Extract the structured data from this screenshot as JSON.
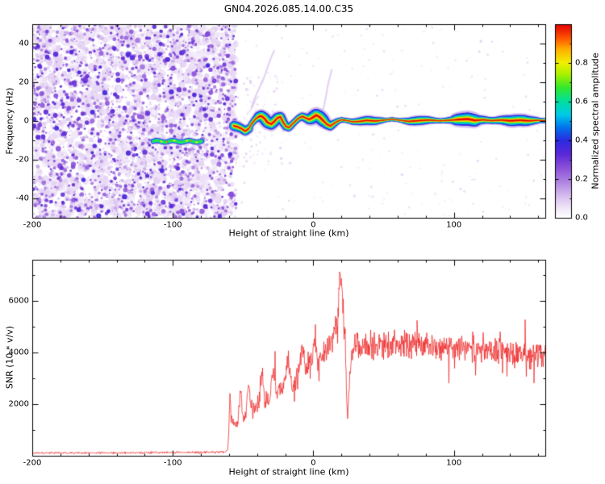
{
  "figure": {
    "title": "GN04.2026.085.14.00.C35"
  },
  "chart_data": [
    {
      "type": "heatmap",
      "name": "doppler-spectrogram",
      "xlabel": "Height of straight line (km)",
      "ylabel": "Frequency (Hz)",
      "xlim": [
        -200,
        165
      ],
      "ylim": [
        -50,
        50
      ],
      "xticks": [
        {
          "v": -200,
          "label": "-200"
        },
        {
          "v": -100,
          "label": "-100"
        },
        {
          "v": 0,
          "label": "0"
        },
        {
          "v": 100,
          "label": "100"
        }
      ],
      "yticks": [
        {
          "v": -40,
          "label": "-40"
        },
        {
          "v": -20,
          "label": "-20"
        },
        {
          "v": 0,
          "label": "0"
        },
        {
          "v": 20,
          "label": "20"
        },
        {
          "v": 40,
          "label": "40"
        }
      ],
      "minor_x_step": 20,
      "minor_y_step": 10,
      "colorbar": {
        "label": "Normalized spectral amplitude",
        "range": [
          0,
          1
        ],
        "ticks": [
          {
            "v": 0,
            "label": "0.0"
          },
          {
            "v": 0.2,
            "label": "0.2"
          },
          {
            "v": 0.4,
            "label": "0.4"
          },
          {
            "v": 0.6,
            "label": "0.6"
          },
          {
            "v": 0.8,
            "label": "0.8"
          }
        ],
        "minor_step": 0.1,
        "colormap": [
          [
            0.0,
            "#ffffff"
          ],
          [
            0.04,
            "#f3ecfa"
          ],
          [
            0.1,
            "#ddc6f0"
          ],
          [
            0.18,
            "#b288e2"
          ],
          [
            0.26,
            "#8a4fd8"
          ],
          [
            0.33,
            "#5a28d8"
          ],
          [
            0.4,
            "#2b2be0"
          ],
          [
            0.47,
            "#0077ee"
          ],
          [
            0.53,
            "#00c8e8"
          ],
          [
            0.6,
            "#00e0a0"
          ],
          [
            0.67,
            "#30e830"
          ],
          [
            0.74,
            "#a8f000"
          ],
          [
            0.8,
            "#f0f000"
          ],
          [
            0.87,
            "#ffb000"
          ],
          [
            0.93,
            "#ff5000"
          ],
          [
            1.0,
            "#e00000"
          ]
        ]
      },
      "noise_region": {
        "x_range": [
          -200,
          -55
        ],
        "amplitude_range": [
          0.02,
          0.36
        ]
      },
      "sparse_region": {
        "x_range": [
          -55,
          165
        ],
        "amplitude_range": [
          0.02,
          0.1
        ]
      },
      "main_trace": {
        "description": "high-amplitude Doppler trace near 0 Hz",
        "peak_amplitude": 1.0,
        "points": [
          [
            -56.5,
            -2.5
          ],
          [
            -54,
            -3
          ],
          [
            -51,
            -4
          ],
          [
            -48.5,
            -5.2
          ],
          [
            -46,
            -4
          ],
          [
            -44,
            -1.5
          ],
          [
            -41.5,
            0.8
          ],
          [
            -39,
            2.2
          ],
          [
            -37,
            2.6
          ],
          [
            -35,
            1.4
          ],
          [
            -32.5,
            -0.8
          ],
          [
            -30,
            -1.6
          ],
          [
            -28,
            -0.4
          ],
          [
            -25.5,
            1.6
          ],
          [
            -23.5,
            2.1
          ],
          [
            -21.5,
            -0.6
          ],
          [
            -19.5,
            -2.8
          ],
          [
            -17.5,
            -3.4
          ],
          [
            -15.5,
            -2
          ],
          [
            -13,
            -0.2
          ],
          [
            -10.5,
            1.4
          ],
          [
            -8,
            2.4
          ],
          [
            -5.5,
            1.6
          ],
          [
            -3,
            0.8
          ],
          [
            -0.5,
            1.8
          ],
          [
            2,
            3
          ],
          [
            4.5,
            2
          ],
          [
            7,
            0.2
          ],
          [
            9.5,
            -1.6
          ],
          [
            12,
            -2.6
          ],
          [
            14.5,
            -1.4
          ],
          [
            17,
            -0.2
          ],
          [
            20,
            0.6
          ],
          [
            24,
            0.2
          ],
          [
            28,
            -0.4
          ],
          [
            33,
            -0.2
          ],
          [
            38,
            0.3
          ],
          [
            44,
            0
          ],
          [
            50,
            0.4
          ],
          [
            56,
            0.9
          ],
          [
            62,
            0.3
          ],
          [
            68,
            -0.2
          ],
          [
            75,
            0.2
          ],
          [
            82,
            0.5
          ],
          [
            90,
            0.1
          ],
          [
            97,
            0.4
          ],
          [
            104,
            0.8
          ],
          [
            110,
            1
          ],
          [
            115,
            0.3
          ],
          [
            121,
            0.6
          ],
          [
            127,
            0.2
          ],
          [
            134,
            0.5
          ],
          [
            140,
            0.1
          ],
          [
            147,
            0.4
          ],
          [
            153,
            0.1
          ],
          [
            159,
            0.3
          ],
          [
            165,
            0.2
          ]
        ]
      },
      "secondary_trace": {
        "freq": -10.5,
        "x_range": [
          -114,
          -79
        ],
        "peak_amplitude": 0.65
      },
      "streaks": [
        {
          "from": [
            -44,
            7
          ],
          "to": [
            -28,
            36
          ]
        },
        {
          "from": [
            -47,
            3
          ],
          "to": [
            -39,
            13
          ]
        },
        {
          "from": [
            6,
            3
          ],
          "to": [
            13,
            27
          ]
        }
      ]
    },
    {
      "type": "line",
      "name": "snr-profile",
      "xlabel": "Height of straight line (km)",
      "ylabel": "SNR (10 * v/v)",
      "line_color": "#ee2222",
      "xlim": [
        -200,
        165
      ],
      "ylim": [
        0,
        7600
      ],
      "xticks": [
        {
          "v": -200,
          "label": "-200"
        },
        {
          "v": -100,
          "label": "-100"
        },
        {
          "v": 0,
          "label": "0"
        },
        {
          "v": 100,
          "label": "100"
        }
      ],
      "yticks": [
        {
          "v": 2000,
          "label": "2000"
        },
        {
          "v": 4000,
          "label": "4000"
        },
        {
          "v": 6000,
          "label": "6000"
        }
      ],
      "minor_x_step": 20,
      "minor_y_step": 1000,
      "envelope_points": [
        [
          -200,
          110,
          45
        ],
        [
          -180,
          110,
          45
        ],
        [
          -160,
          115,
          45
        ],
        [
          -140,
          115,
          45
        ],
        [
          -120,
          120,
          50
        ],
        [
          -100,
          125,
          50
        ],
        [
          -80,
          130,
          55
        ],
        [
          -70,
          135,
          55
        ],
        [
          -63,
          140,
          60
        ],
        [
          -61,
          180,
          80
        ],
        [
          -60.2,
          900,
          250
        ],
        [
          -59.3,
          2550,
          300
        ],
        [
          -58.6,
          1500,
          300
        ],
        [
          -57,
          1250,
          250
        ],
        [
          -54,
          1250,
          250
        ],
        [
          -51.5,
          2750,
          400
        ],
        [
          -50.5,
          1600,
          300
        ],
        [
          -48,
          1500,
          300
        ],
        [
          -46,
          2850,
          450
        ],
        [
          -44.5,
          1900,
          350
        ],
        [
          -42,
          1850,
          350
        ],
        [
          -39,
          2050,
          400
        ],
        [
          -36.5,
          3350,
          500
        ],
        [
          -34.5,
          2100,
          400
        ],
        [
          -31,
          2250,
          450
        ],
        [
          -28,
          3500,
          550
        ],
        [
          -26,
          2350,
          450
        ],
        [
          -22,
          2550,
          500
        ],
        [
          -18,
          3750,
          600
        ],
        [
          -15,
          2700,
          550
        ],
        [
          -11,
          3050,
          600
        ],
        [
          -8,
          4250,
          650
        ],
        [
          -5,
          3250,
          600
        ],
        [
          -2,
          3500,
          650
        ],
        [
          1,
          4550,
          700
        ],
        [
          4,
          3450,
          650
        ],
        [
          8,
          3900,
          700
        ],
        [
          12,
          4400,
          700
        ],
        [
          15,
          4900,
          750
        ],
        [
          17.5,
          5600,
          700
        ],
        [
          19,
          7250,
          350
        ],
        [
          20,
          6600,
          600
        ],
        [
          21.5,
          5200,
          700
        ],
        [
          23,
          3500,
          700
        ],
        [
          24.3,
          1350,
          250
        ],
        [
          25.5,
          2600,
          500
        ],
        [
          27,
          3900,
          600
        ],
        [
          30,
          4250,
          650
        ],
        [
          40,
          4300,
          650
        ],
        [
          55,
          4350,
          650
        ],
        [
          70,
          4300,
          650
        ],
        [
          85,
          4250,
          650
        ],
        [
          100,
          4250,
          650
        ],
        [
          115,
          4100,
          620
        ],
        [
          130,
          4050,
          620
        ],
        [
          145,
          3950,
          600
        ],
        [
          158,
          3900,
          600
        ],
        [
          165,
          3850,
          600
        ]
      ]
    }
  ]
}
